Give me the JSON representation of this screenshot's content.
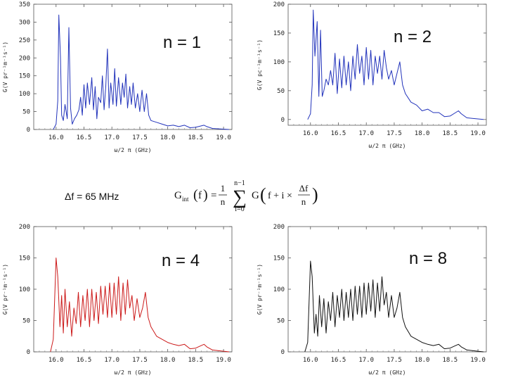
{
  "annotation": {
    "delta_f": "Δf = 65 MHz"
  },
  "formula": {
    "lhs_main": "G",
    "lhs_sub": "int",
    "lhs_arg": "f",
    "equals": "=",
    "frac_num": "1",
    "frac_den": "n",
    "sum_upper": "n−1",
    "sum_symbol": "∑",
    "sum_lower": "i=0",
    "body_g": "G",
    "body_arg": "f + i ×",
    "inner_num": "Δf",
    "inner_den": "n"
  },
  "chart_data": [
    {
      "type": "line",
      "label": "n = 1",
      "color": "#2233bb",
      "xlabel": "ω/2 π (GHz)",
      "ylabel": "G(V pr⁻¹m⁻¹s⁻¹)",
      "xlim": [
        15.6,
        19.15
      ],
      "ylim": [
        0,
        350
      ],
      "xticks": [
        16.0,
        16.5,
        17.0,
        17.5,
        18.0,
        18.5,
        19.0
      ],
      "xticklabels": [
        "16.0",
        "16.5",
        "17.0",
        "17.5",
        "18.0",
        "18.5",
        "19.0"
      ],
      "yticks": [
        0,
        50,
        100,
        150,
        200,
        250,
        300,
        350
      ],
      "yticklabels": [
        "0",
        "50",
        "100",
        "150",
        "200",
        "250",
        "300",
        "350"
      ],
      "x": [
        15.95,
        16.0,
        16.03,
        16.05,
        16.08,
        16.1,
        16.13,
        16.16,
        16.2,
        16.23,
        16.26,
        16.29,
        16.33,
        16.37,
        16.41,
        16.44,
        16.47,
        16.5,
        16.53,
        16.56,
        16.6,
        16.64,
        16.67,
        16.7,
        16.73,
        16.76,
        16.8,
        16.83,
        16.86,
        16.89,
        16.92,
        16.95,
        16.98,
        17.02,
        17.05,
        17.08,
        17.12,
        17.16,
        17.19,
        17.22,
        17.25,
        17.28,
        17.32,
        17.35,
        17.38,
        17.42,
        17.46,
        17.5,
        17.54,
        17.58,
        17.62,
        17.66,
        17.7,
        17.8,
        17.9,
        18.0,
        18.1,
        18.2,
        18.3,
        18.4,
        18.5,
        18.6,
        18.65,
        18.7,
        18.8,
        18.9,
        19.0,
        19.1
      ],
      "y": [
        0,
        15,
        80,
        320,
        200,
        40,
        25,
        70,
        30,
        285,
        60,
        15,
        30,
        40,
        55,
        90,
        40,
        125,
        60,
        130,
        70,
        145,
        55,
        120,
        30,
        90,
        75,
        150,
        55,
        120,
        225,
        60,
        130,
        70,
        170,
        65,
        145,
        70,
        130,
        90,
        155,
        60,
        120,
        70,
        130,
        60,
        100,
        50,
        110,
        50,
        100,
        40,
        25,
        20,
        15,
        10,
        12,
        8,
        12,
        5,
        6,
        10,
        12,
        8,
        3,
        2,
        1,
        0
      ]
    },
    {
      "type": "line",
      "label": "n = 2",
      "color": "#2233bb",
      "xlabel": "ω/2 π (GHz)",
      "ylabel": "G(V pc⁻¹m⁻¹s⁻¹)",
      "xlim": [
        15.6,
        19.15
      ],
      "ylim": [
        -10,
        200
      ],
      "xticks": [
        16.0,
        16.5,
        17.0,
        17.5,
        18.0,
        18.5,
        19.0
      ],
      "xticklabels": [
        "16.0",
        "16.5",
        "17.0",
        "17.5",
        "18.0",
        "18.5",
        "19.0"
      ],
      "yticks": [
        0,
        50,
        100,
        150,
        200
      ],
      "yticklabels": [
        "0",
        "50",
        "100",
        "150",
        "200"
      ],
      "x": [
        15.95,
        16.0,
        16.03,
        16.05,
        16.08,
        16.12,
        16.15,
        16.18,
        16.21,
        16.24,
        16.28,
        16.32,
        16.36,
        16.4,
        16.44,
        16.48,
        16.52,
        16.56,
        16.6,
        16.64,
        16.68,
        16.72,
        16.76,
        16.8,
        16.84,
        16.88,
        16.92,
        16.96,
        17.0,
        17.04,
        17.08,
        17.12,
        17.16,
        17.2,
        17.24,
        17.28,
        17.32,
        17.36,
        17.4,
        17.45,
        17.5,
        17.55,
        17.6,
        17.65,
        17.7,
        17.8,
        17.9,
        18.0,
        18.1,
        18.2,
        18.3,
        18.4,
        18.5,
        18.6,
        18.65,
        18.7,
        18.8,
        18.9,
        19.0,
        19.1
      ],
      "y": [
        0,
        10,
        60,
        190,
        110,
        170,
        40,
        155,
        40,
        50,
        70,
        60,
        85,
        60,
        115,
        45,
        105,
        55,
        110,
        60,
        100,
        50,
        110,
        70,
        130,
        80,
        110,
        60,
        125,
        70,
        120,
        60,
        110,
        80,
        110,
        70,
        120,
        90,
        70,
        85,
        60,
        80,
        100,
        60,
        45,
        30,
        25,
        15,
        18,
        12,
        12,
        5,
        6,
        12,
        15,
        10,
        3,
        2,
        1,
        0
      ]
    },
    {
      "type": "line",
      "label": "n = 4",
      "color": "#cc1a1a",
      "xlabel": "ω/2 π (GHz)",
      "ylabel": "G(V pr⁻¹m⁻¹s⁻¹)",
      "xlim": [
        15.6,
        19.15
      ],
      "ylim": [
        0,
        200
      ],
      "xticks": [
        16.0,
        16.5,
        17.0,
        17.5,
        18.0,
        18.5,
        19.0
      ],
      "xticklabels": [
        "16.0",
        "16.5",
        "17.0",
        "17.5",
        "18.0",
        "18.5",
        "19.0"
      ],
      "yticks": [
        0,
        50,
        100,
        150,
        200
      ],
      "yticklabels": [
        "0",
        "50",
        "100",
        "150",
        "200"
      ],
      "x": [
        15.9,
        15.95,
        16.0,
        16.03,
        16.07,
        16.1,
        16.13,
        16.16,
        16.2,
        16.24,
        16.28,
        16.32,
        16.36,
        16.4,
        16.44,
        16.48,
        16.52,
        16.56,
        16.6,
        16.64,
        16.68,
        16.72,
        16.76,
        16.8,
        16.84,
        16.88,
        16.92,
        16.96,
        17.0,
        17.04,
        17.08,
        17.12,
        17.16,
        17.2,
        17.24,
        17.28,
        17.32,
        17.36,
        17.4,
        17.45,
        17.5,
        17.55,
        17.6,
        17.65,
        17.7,
        17.8,
        17.9,
        18.0,
        18.1,
        18.2,
        18.3,
        18.4,
        18.5,
        18.6,
        18.65,
        18.7,
        18.8,
        18.9,
        19.0,
        19.1
      ],
      "y": [
        0,
        20,
        150,
        120,
        40,
        90,
        30,
        100,
        40,
        80,
        25,
        70,
        45,
        95,
        40,
        90,
        50,
        100,
        40,
        100,
        50,
        95,
        45,
        105,
        60,
        105,
        55,
        110,
        55,
        110,
        60,
        120,
        50,
        110,
        60,
        115,
        70,
        90,
        50,
        85,
        55,
        70,
        95,
        55,
        40,
        25,
        20,
        15,
        12,
        10,
        12,
        5,
        6,
        10,
        12,
        8,
        3,
        2,
        1,
        0
      ]
    },
    {
      "type": "line",
      "label": "n = 8",
      "color": "#111111",
      "xlabel": "ω/2 π (GHz)",
      "ylabel": "G(V pr⁻¹m⁻¹s⁻¹)",
      "xlim": [
        15.6,
        19.15
      ],
      "ylim": [
        0,
        200
      ],
      "xticks": [
        16.0,
        16.5,
        17.0,
        17.5,
        18.0,
        18.5,
        19.0
      ],
      "xticklabels": [
        "16.0",
        "16.5",
        "17.0",
        "17.5",
        "18.0",
        "18.5",
        "19.0"
      ],
      "yticks": [
        0,
        50,
        100,
        150,
        200
      ],
      "yticklabels": [
        "0",
        "50",
        "100",
        "150",
        "200"
      ],
      "x": [
        15.9,
        15.95,
        16.0,
        16.03,
        16.07,
        16.1,
        16.13,
        16.16,
        16.2,
        16.24,
        16.28,
        16.32,
        16.36,
        16.4,
        16.44,
        16.48,
        16.52,
        16.56,
        16.6,
        16.64,
        16.68,
        16.72,
        16.76,
        16.8,
        16.84,
        16.88,
        16.92,
        16.96,
        17.0,
        17.04,
        17.08,
        17.12,
        17.16,
        17.2,
        17.24,
        17.28,
        17.32,
        17.36,
        17.4,
        17.45,
        17.5,
        17.55,
        17.6,
        17.65,
        17.7,
        17.8,
        17.9,
        18.0,
        18.1,
        18.2,
        18.3,
        18.4,
        18.5,
        18.6,
        18.65,
        18.7,
        18.8,
        18.9,
        19.0,
        19.1
      ],
      "y": [
        0,
        15,
        145,
        120,
        30,
        60,
        25,
        90,
        40,
        85,
        30,
        80,
        50,
        95,
        40,
        90,
        55,
        100,
        50,
        95,
        55,
        100,
        50,
        105,
        60,
        105,
        55,
        110,
        60,
        110,
        65,
        115,
        55,
        110,
        65,
        120,
        75,
        95,
        55,
        90,
        55,
        70,
        95,
        55,
        40,
        25,
        20,
        15,
        12,
        10,
        12,
        5,
        6,
        10,
        12,
        8,
        3,
        2,
        1,
        0
      ]
    }
  ]
}
